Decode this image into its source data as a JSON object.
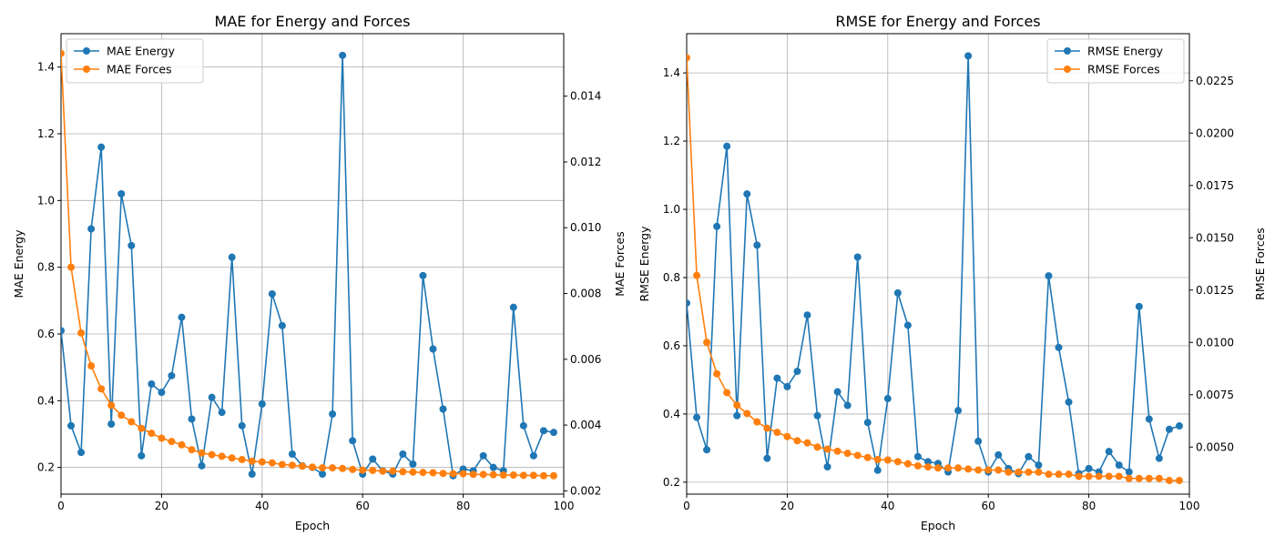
{
  "colors": {
    "energy": "#1f77b4",
    "forces": "#ff7f0e",
    "grid": "#b0b0b0"
  },
  "chart_data": [
    {
      "type": "line",
      "title": "MAE for Energy and Forces",
      "xlabel": "Epoch",
      "ylabel": "MAE Energy",
      "ylabel_right": "MAE Forces",
      "xlim": [
        0,
        100
      ],
      "ylim": [
        0.12,
        1.5
      ],
      "ylim_right": [
        0.0019,
        0.0159
      ],
      "xticks": [
        "0",
        "20",
        "40",
        "60",
        "80",
        "100"
      ],
      "yticks": [
        "0.2",
        "0.4",
        "0.6",
        "0.8",
        "1.0",
        "1.2",
        "1.4"
      ],
      "yticks_right": [
        "0.002",
        "0.004",
        "0.006",
        "0.008",
        "0.010",
        "0.012",
        "0.014"
      ],
      "grid": true,
      "legend_position": "top-left",
      "x": [
        0,
        2,
        4,
        6,
        8,
        10,
        12,
        14,
        16,
        18,
        20,
        22,
        24,
        26,
        28,
        30,
        32,
        34,
        36,
        38,
        40,
        42,
        44,
        46,
        48,
        50,
        52,
        54,
        56,
        58,
        60,
        62,
        64,
        66,
        68,
        70,
        72,
        74,
        76,
        78,
        80,
        82,
        84,
        86,
        88,
        90,
        92,
        94,
        96,
        98
      ],
      "series": [
        {
          "name": "MAE Energy",
          "axis": "left",
          "values": [
            0.61,
            0.325,
            0.245,
            0.915,
            1.16,
            0.33,
            1.02,
            0.865,
            0.235,
            0.45,
            0.425,
            0.475,
            0.65,
            0.345,
            0.205,
            0.41,
            0.365,
            0.83,
            0.325,
            0.18,
            0.39,
            0.72,
            0.625,
            0.24,
            0.205,
            0.2,
            0.18,
            0.36,
            1.435,
            0.28,
            0.18,
            0.225,
            0.19,
            0.18,
            0.24,
            0.21,
            0.775,
            0.555,
            0.375,
            0.175,
            0.195,
            0.19,
            0.235,
            0.2,
            0.19,
            0.68,
            0.325,
            0.235,
            0.31,
            0.305
          ]
        },
        {
          "name": "MAE Forces",
          "axis": "right",
          "values": [
            0.0153,
            0.0088,
            0.0068,
            0.0058,
            0.0051,
            0.0046,
            0.0043,
            0.0041,
            0.0039,
            0.00375,
            0.0036,
            0.0035,
            0.0034,
            0.00325,
            0.00315,
            0.0031,
            0.00305,
            0.003,
            0.00295,
            0.0029,
            0.00288,
            0.00285,
            0.0028,
            0.00278,
            0.00275,
            0.00272,
            0.0027,
            0.0027,
            0.00268,
            0.00265,
            0.00263,
            0.00262,
            0.0026,
            0.0026,
            0.00258,
            0.00257,
            0.00256,
            0.00255,
            0.00253,
            0.00252,
            0.00252,
            0.0025,
            0.0025,
            0.00249,
            0.00248,
            0.00248,
            0.00247,
            0.00247,
            0.00246,
            0.00246
          ]
        }
      ]
    },
    {
      "type": "line",
      "title": "RMSE for Energy and Forces",
      "xlabel": "Epoch",
      "ylabel": "RMSE Energy",
      "ylabel_right": "RMSE Forces",
      "xlim": [
        0,
        100
      ],
      "ylim": [
        0.165,
        1.515
      ],
      "ylim_right": [
        0.00275,
        0.02475
      ],
      "xticks": [
        "0",
        "20",
        "40",
        "60",
        "80",
        "100"
      ],
      "yticks": [
        "0.2",
        "0.4",
        "0.6",
        "0.8",
        "1.0",
        "1.2",
        "1.4"
      ],
      "yticks_right": [
        "0.0050",
        "0.0075",
        "0.0100",
        "0.0125",
        "0.0150",
        "0.0175",
        "0.0200",
        "0.0225"
      ],
      "grid": true,
      "legend_position": "top-right",
      "x": [
        0,
        2,
        4,
        6,
        8,
        10,
        12,
        14,
        16,
        18,
        20,
        22,
        24,
        26,
        28,
        30,
        32,
        34,
        36,
        38,
        40,
        42,
        44,
        46,
        48,
        50,
        52,
        54,
        56,
        58,
        60,
        62,
        64,
        66,
        68,
        70,
        72,
        74,
        76,
        78,
        80,
        82,
        84,
        86,
        88,
        90,
        92,
        94,
        96,
        98
      ],
      "series": [
        {
          "name": "RMSE Energy",
          "axis": "left",
          "values": [
            0.725,
            0.39,
            0.295,
            0.95,
            1.185,
            0.395,
            1.045,
            0.895,
            0.27,
            0.505,
            0.48,
            0.525,
            0.69,
            0.395,
            0.245,
            0.465,
            0.425,
            0.86,
            0.375,
            0.235,
            0.445,
            0.755,
            0.66,
            0.275,
            0.26,
            0.255,
            0.23,
            0.41,
            1.45,
            0.32,
            0.23,
            0.28,
            0.24,
            0.225,
            0.275,
            0.25,
            0.805,
            0.595,
            0.435,
            0.225,
            0.24,
            0.23,
            0.29,
            0.25,
            0.23,
            0.715,
            0.385,
            0.27,
            0.355,
            0.365
          ]
        },
        {
          "name": "RMSE Forces",
          "axis": "right",
          "values": [
            0.0236,
            0.0132,
            0.01,
            0.0085,
            0.0076,
            0.007,
            0.0066,
            0.0062,
            0.0059,
            0.0057,
            0.0055,
            0.0053,
            0.0052,
            0.005,
            0.0049,
            0.0048,
            0.0047,
            0.0046,
            0.0045,
            0.0044,
            0.00438,
            0.0043,
            0.0042,
            0.0041,
            0.00405,
            0.004,
            0.004,
            0.004,
            0.00395,
            0.0039,
            0.0039,
            0.0039,
            0.0038,
            0.0038,
            0.0038,
            0.0038,
            0.0037,
            0.0037,
            0.0037,
            0.0036,
            0.0036,
            0.0036,
            0.0036,
            0.0036,
            0.0035,
            0.0035,
            0.0035,
            0.0035,
            0.0034,
            0.0034
          ]
        }
      ]
    }
  ]
}
